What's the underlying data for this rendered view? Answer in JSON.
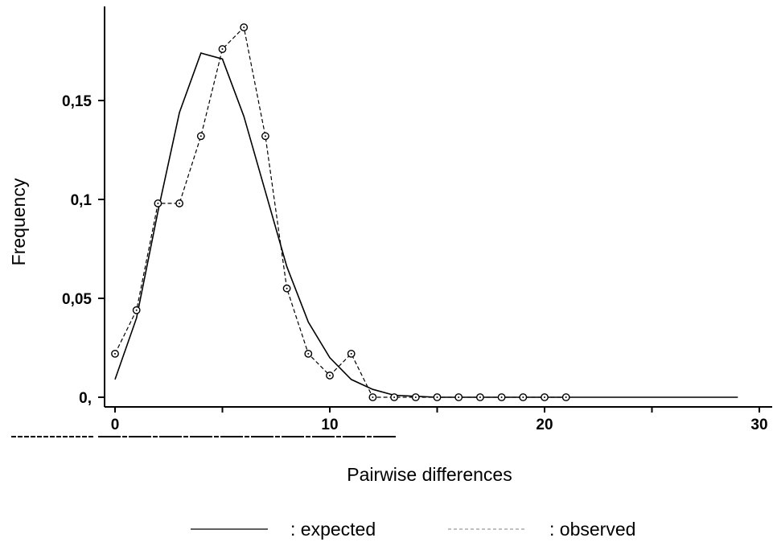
{
  "chart_data": {
    "type": "line",
    "xlabel": "Pairwise differences",
    "ylabel": "Frequency",
    "xlim": [
      0,
      30
    ],
    "ylim": [
      0,
      0.19
    ],
    "x_ticks": [
      {
        "value": 0,
        "label": "0"
      },
      {
        "value": 10,
        "label": "10"
      },
      {
        "value": 20,
        "label": "20"
      },
      {
        "value": 30,
        "label": "30"
      }
    ],
    "y_ticks": [
      {
        "value": 0,
        "label": "0,"
      },
      {
        "value": 0.05,
        "label": "0,05"
      },
      {
        "value": 0.1,
        "label": "0,1"
      },
      {
        "value": 0.15,
        "label": "0,15"
      }
    ],
    "grid": false,
    "legend_position": "bottom",
    "series": [
      {
        "name": ": expected",
        "style": "solid",
        "color": "#000000",
        "markers": false,
        "x": [
          0,
          1,
          2,
          3,
          4,
          5,
          6,
          7,
          8,
          9,
          10,
          11,
          12,
          13,
          14,
          15,
          16,
          17,
          18,
          19,
          20,
          21,
          22,
          23,
          24,
          25,
          26,
          27,
          28,
          29
        ],
        "y": [
          0.009,
          0.04,
          0.094,
          0.144,
          0.174,
          0.171,
          0.142,
          0.104,
          0.066,
          0.038,
          0.02,
          0.009,
          0.004,
          0.001,
          0.0005,
          0,
          0,
          0,
          0,
          0,
          0,
          0,
          0,
          0,
          0,
          0,
          0,
          0,
          0,
          0
        ]
      },
      {
        "name": ": observed",
        "style": "dashed",
        "color": "#000000",
        "markers": true,
        "x": [
          0,
          1,
          2,
          3,
          4,
          5,
          6,
          7,
          8,
          9,
          10,
          11,
          12,
          13,
          14,
          15,
          16,
          17,
          18,
          19,
          20,
          21
        ],
        "y": [
          0.022,
          0.044,
          0.098,
          0.098,
          0.132,
          0.176,
          0.187,
          0.132,
          0.055,
          0.022,
          0.011,
          0.022,
          0,
          0,
          0,
          0,
          0,
          0,
          0,
          0,
          0,
          0
        ]
      }
    ]
  }
}
